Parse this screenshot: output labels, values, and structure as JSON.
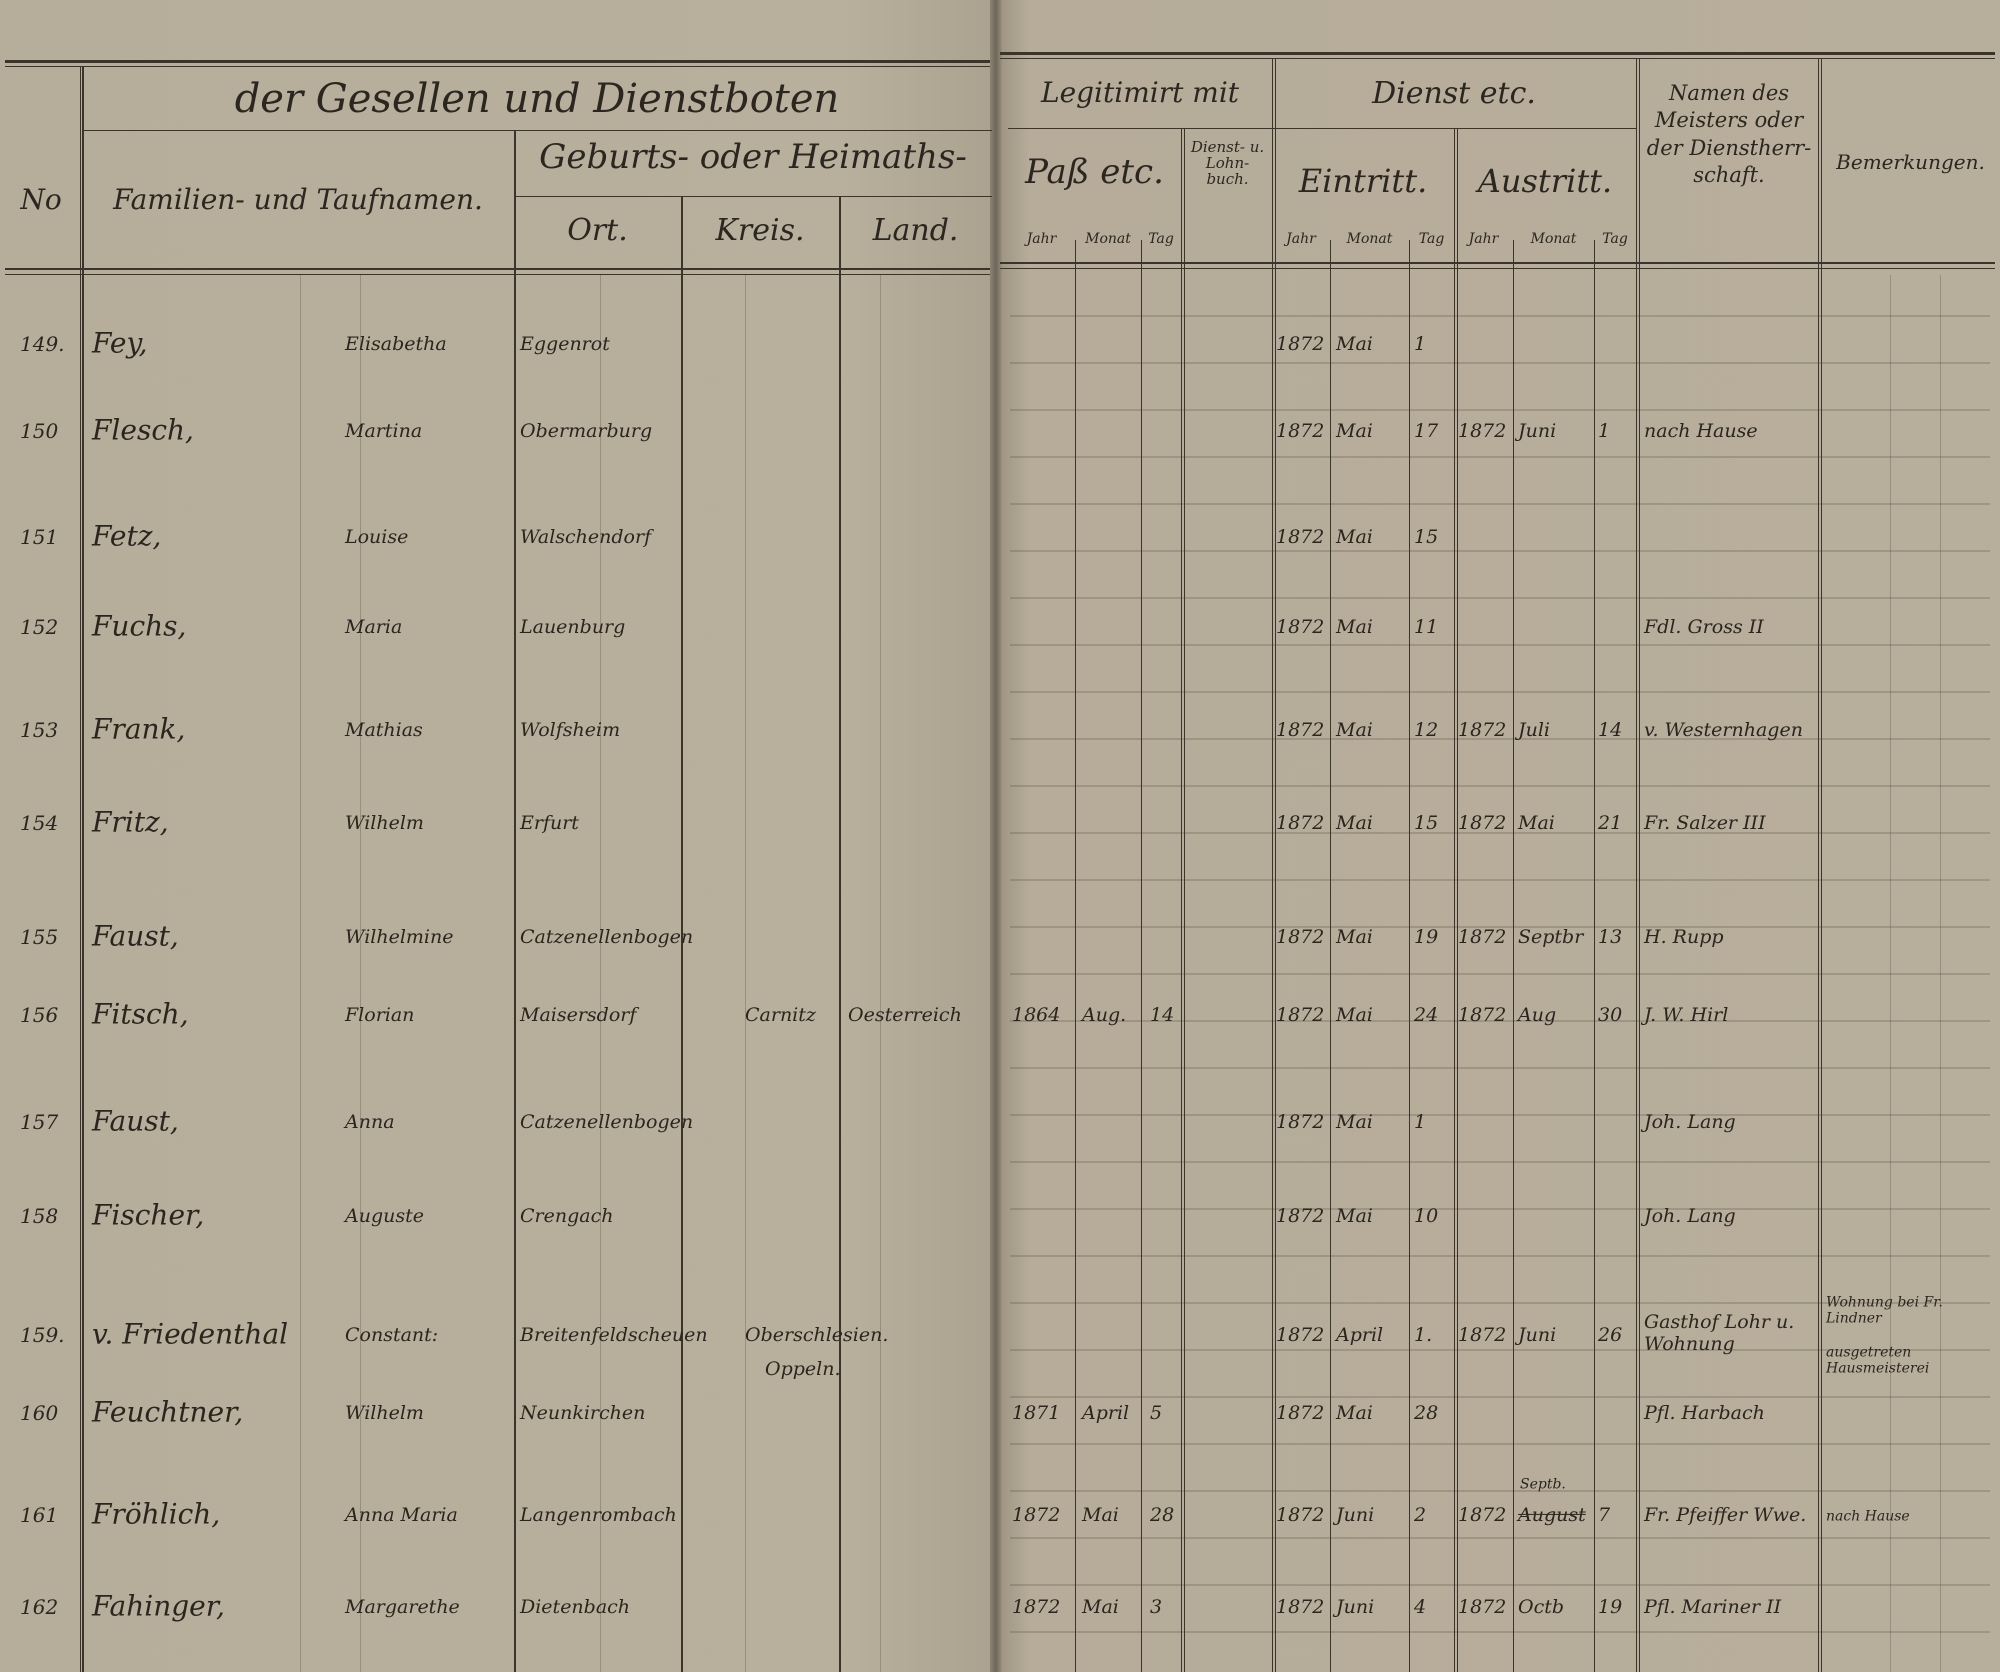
{
  "header": {
    "title_left": "der Gesellen und Dienstboten",
    "no": "No",
    "names": "Familien- und Taufnamen.",
    "origin": "Geburts- oder Heimaths-",
    "ort": "Ort.",
    "kreis": "Kreis.",
    "land": "Land.",
    "legitimirt": "Legitimirt mit",
    "pass": "Paß etc.",
    "dienstbuch": "Dienst- u. Lohn- buch.",
    "dienst": "Dienst etc.",
    "eintritt": "Eintritt.",
    "austritt": "Austritt.",
    "jahr": "Jahr",
    "monat": "Monat",
    "tag": "Tag",
    "meister": "Namen des Meisters oder der Dienstherr- schaft.",
    "bemerkungen": "Bemerkungen."
  },
  "rows": [
    {
      "no": "149.",
      "surname": "Fey,",
      "given": "Elisabetha",
      "ort": "Eggenrot",
      "ein_jahr": "1872",
      "ein_monat": "Mai",
      "ein_tag": "1"
    },
    {
      "no": "150",
      "surname": "Flesch,",
      "given": "Martina",
      "ort": "Obermarburg",
      "ein_jahr": "1872",
      "ein_monat": "Mai",
      "ein_tag": "17",
      "aus_jahr": "1872",
      "aus_monat": "Juni",
      "aus_tag": "1",
      "meister": "nach Hause"
    },
    {
      "no": "151",
      "surname": "Fetz,",
      "given": "Louise",
      "ort": "Walschendorf",
      "ein_jahr": "1872",
      "ein_monat": "Mai",
      "ein_tag": "15"
    },
    {
      "no": "152",
      "surname": "Fuchs,",
      "given": "Maria",
      "ort": "Lauenburg",
      "ein_jahr": "1872",
      "ein_monat": "Mai",
      "ein_tag": "11",
      "meister": "Fdl. Gross II"
    },
    {
      "no": "153",
      "surname": "Frank,",
      "given": "Mathias",
      "ort": "Wolfsheim",
      "ein_jahr": "1872",
      "ein_monat": "Mai",
      "ein_tag": "12",
      "aus_jahr": "1872",
      "aus_monat": "Juli",
      "aus_tag": "14",
      "meister": "v. Westernhagen"
    },
    {
      "no": "154",
      "surname": "Fritz,",
      "given": "Wilhelm",
      "ort": "Erfurt",
      "ein_jahr": "1872",
      "ein_monat": "Mai",
      "ein_tag": "15",
      "aus_jahr": "1872",
      "aus_monat": "Mai",
      "aus_tag": "21",
      "meister": "Fr. Salzer III"
    },
    {
      "no": "155",
      "surname": "Faust,",
      "given": "Wilhelmine",
      "ort": "Catzenellenbogen",
      "ein_jahr": "1872",
      "ein_monat": "Mai",
      "ein_tag": "19",
      "aus_jahr": "1872",
      "aus_monat": "Septbr",
      "aus_tag": "13",
      "meister": "H. Rupp"
    },
    {
      "no": "156",
      "surname": "Fitsch,",
      "given": "Florian",
      "ort": "Maisersdorf",
      "kreis": "Carnitz",
      "land": "Oesterreich",
      "pass_jahr": "1864",
      "pass_monat": "Aug.",
      "pass_tag": "14",
      "ein_jahr": "1872",
      "ein_monat": "Mai",
      "ein_tag": "24",
      "aus_jahr": "1872",
      "aus_monat": "Aug",
      "aus_tag": "30",
      "meister": "J. W. Hirl"
    },
    {
      "no": "157",
      "surname": "Faust,",
      "given": "Anna",
      "ort": "Catzenellenbogen",
      "ein_jahr": "1872",
      "ein_monat": "Mai",
      "ein_tag": "1",
      "meister": "Joh. Lang"
    },
    {
      "no": "158",
      "surname": "Fischer,",
      "given": "Auguste",
      "ort": "Crengach",
      "ein_jahr": "1872",
      "ein_monat": "Mai",
      "ein_tag": "10",
      "meister": "Joh. Lang"
    },
    {
      "no": "159.",
      "surname": "v. Friedenthal",
      "given": "Constant:",
      "ort": "Breitenfeldscheuen",
      "kreis": "Oberschlesien.",
      "kreis2": "Oppeln.",
      "ein_jahr": "1872",
      "ein_monat": "April",
      "ein_tag": "1.",
      "aus_jahr": "1872",
      "aus_monat": "Juni",
      "aus_tag": "26",
      "meister": "Gasthof Lohr u. Wohnung",
      "bemerkungen": "Wohnung bei Fr. Lindner",
      "bemerkungen2": "ausgetreten Hausmeisterei"
    },
    {
      "no": "160",
      "surname": "Feuchtner,",
      "given": "Wilhelm",
      "ort": "Neunkirchen",
      "pass_jahr": "1871",
      "pass_monat": "April",
      "pass_tag": "5",
      "ein_jahr": "1872",
      "ein_monat": "Mai",
      "ein_tag": "28",
      "meister": "Pfl. Harbach"
    },
    {
      "no": "161",
      "surname": "Fröhlich,",
      "given": "Anna Maria",
      "ort": "Langenrombach",
      "pass_jahr": "1872",
      "pass_monat": "Mai",
      "pass_tag": "28",
      "ein_jahr": "1872",
      "ein_monat": "Juni",
      "ein_tag": "2",
      "aus_jahr": "1872",
      "aus_monat_above": "Septb.",
      "aus_monat": "August",
      "aus_tag": "7",
      "meister": "Fr. Pfeiffer Wwe.",
      "bemerkungen": "nach Hause"
    },
    {
      "no": "162",
      "surname": "Fahinger,",
      "given": "Margarethe",
      "ort": "Dietenbach",
      "pass_jahr": "1872",
      "pass_monat": "Mai",
      "pass_tag": "3",
      "ein_jahr": "1872",
      "ein_monat": "Juni",
      "ein_tag": "4",
      "aus_jahr": "1872",
      "aus_monat": "Octb",
      "aus_tag": "19",
      "meister": "Pfl. Mariner II"
    }
  ]
}
